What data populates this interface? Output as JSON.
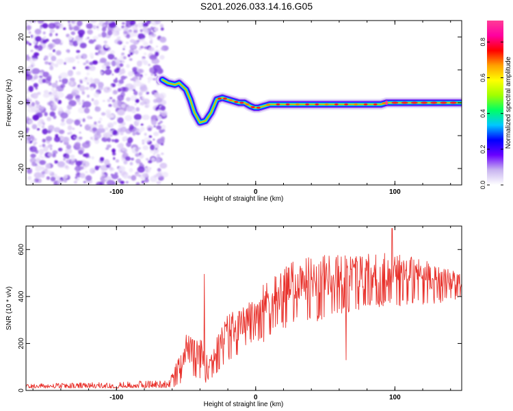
{
  "title": "S201.2026.033.14.16.G05",
  "chart_data": [
    {
      "type": "heatmap",
      "name": "spectrogram",
      "xlabel": "Height of straight line (km)",
      "ylabel": "Frequency (Hz)",
      "xlim": [
        -165,
        148
      ],
      "ylim": [
        -25,
        25
      ],
      "xticks": [
        -100,
        0,
        100
      ],
      "yticks": [
        -20,
        -10,
        0,
        10,
        20
      ],
      "noise_region_x": [
        -165,
        -67
      ],
      "ridge": {
        "x": [
          -67,
          -63,
          -58,
          -55,
          -50,
          -47,
          -44,
          -40,
          -36,
          -32,
          -28,
          -24,
          -20,
          -16,
          -12,
          -8,
          -4,
          -1,
          2,
          6,
          10,
          20,
          40,
          60,
          80,
          90,
          94,
          100,
          120,
          148
        ],
        "y": [
          7,
          6,
          5.5,
          6,
          4,
          1,
          -3,
          -6,
          -5.5,
          -3,
          1,
          1.5,
          1,
          0.5,
          0,
          0,
          -1,
          -1.5,
          -1.5,
          -1,
          -0.5,
          -0.5,
          -0.5,
          -0.5,
          -0.5,
          -0.5,
          0,
          0,
          0,
          0
        ]
      },
      "colorbar": {
        "label": "Normalized spectral amplitude",
        "min": 0.0,
        "max": 0.92,
        "ticks": [
          "0.0",
          "0.2",
          "0.4",
          "0.6",
          "0.8"
        ],
        "tick_values": [
          0.0,
          0.2,
          0.4,
          0.6,
          0.8
        ],
        "colors": [
          "#ffffff",
          "#c8b4f0",
          "#6a00ff",
          "#0000ff",
          "#00c8ff",
          "#00ff64",
          "#a0ff00",
          "#ffff00",
          "#ffa000",
          "#ff0000",
          "#ff00a0",
          "#ff3c96"
        ]
      }
    },
    {
      "type": "line",
      "name": "snr",
      "xlabel": "Height of straight line (km)",
      "ylabel": "SNR (10 * v/v)",
      "xlim": [
        -165,
        148
      ],
      "ylim": [
        0,
        700
      ],
      "xticks": [
        -100,
        0,
        100
      ],
      "yticks": [
        0,
        200,
        400,
        600
      ],
      "color": "#e8302a",
      "envelope": {
        "x": [
          -165,
          -100,
          -62,
          -55,
          -50,
          -45,
          -40,
          -35,
          -30,
          -20,
          -10,
          0,
          5,
          15,
          30,
          50,
          70,
          100,
          120,
          148
        ],
        "low": [
          10,
          10,
          12,
          20,
          50,
          45,
          30,
          35,
          60,
          120,
          150,
          220,
          200,
          250,
          280,
          300,
          340,
          360,
          360,
          390
        ],
        "high": [
          30,
          35,
          50,
          150,
          250,
          220,
          230,
          150,
          200,
          330,
          350,
          400,
          450,
          500,
          560,
          580,
          580,
          600,
          560,
          500
        ]
      },
      "spikes": [
        {
          "x": -37,
          "y": 495
        },
        {
          "x": 65,
          "y": 130
        },
        {
          "x": 98,
          "y": 690
        }
      ]
    }
  ]
}
